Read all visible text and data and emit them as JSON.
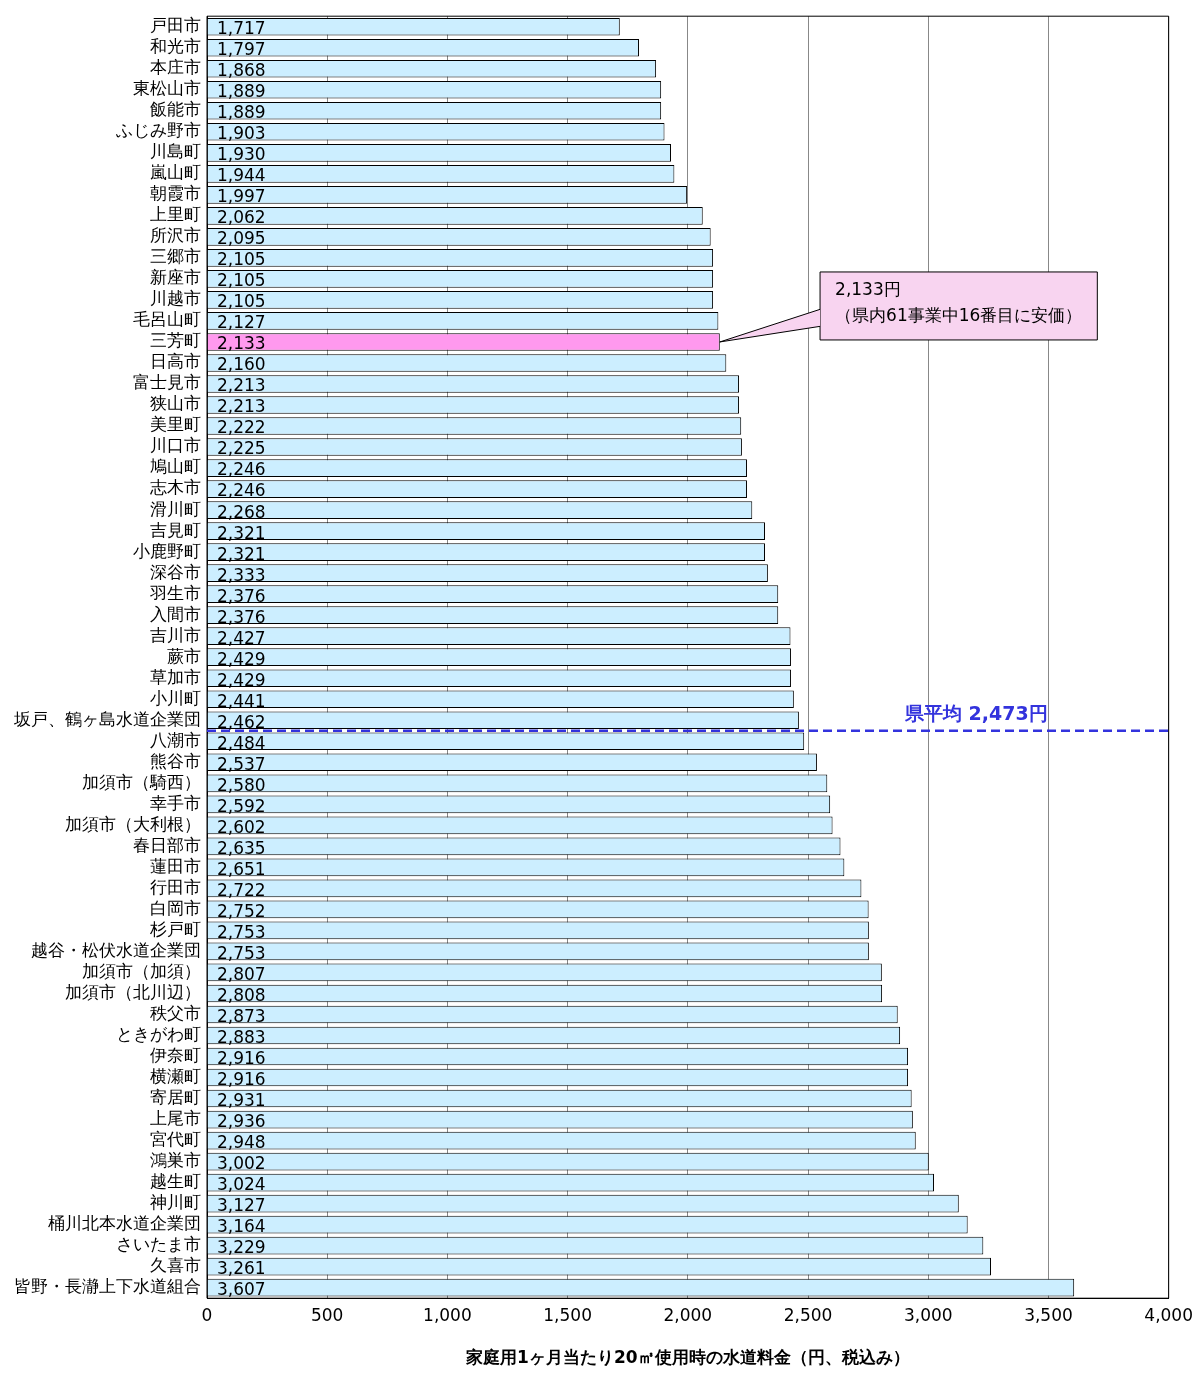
{
  "chart_data": {
    "type": "bar",
    "orientation": "horizontal",
    "xlabel": "家庭用1ヶ月当たり20㎥使用時の水道料金（円、税込み）",
    "categories": [
      "戸田市",
      "和光市",
      "本庄市",
      "東松山市",
      "飯能市",
      "ふじみ野市",
      "川島町",
      "嵐山町",
      "朝霞市",
      "上里町",
      "所沢市",
      "三郷市",
      "新座市",
      "川越市",
      "毛呂山町",
      "三芳町",
      "日高市",
      "富士見市",
      "狭山市",
      "美里町",
      "川口市",
      "鳩山町",
      "志木市",
      "滑川町",
      "吉見町",
      "小鹿野町",
      "深谷市",
      "羽生市",
      "入間市",
      "吉川市",
      "蕨市",
      "草加市",
      "小川町",
      "坂戸、鶴ヶ島水道企業団",
      "八潮市",
      "熊谷市",
      "加須市（騎西）",
      "幸手市",
      "加須市（大利根）",
      "春日部市",
      "蓮田市",
      "行田市",
      "白岡市",
      "杉戸町",
      "越谷・松伏水道企業団",
      "加須市（加須）",
      "加須市（北川辺）",
      "秩父市",
      "ときがわ町",
      "伊奈町",
      "横瀬町",
      "寄居町",
      "上尾市",
      "宮代町",
      "鴻巣市",
      "越生町",
      "神川町",
      "桶川北本水道企業団",
      "さいたま市",
      "久喜市",
      "皆野・長瀞上下水道組合"
    ],
    "values": [
      1717,
      1797,
      1868,
      1889,
      1889,
      1903,
      1930,
      1944,
      1997,
      2062,
      2095,
      2105,
      2105,
      2105,
      2127,
      2133,
      2160,
      2213,
      2213,
      2222,
      2225,
      2246,
      2246,
      2268,
      2321,
      2321,
      2333,
      2376,
      2376,
      2427,
      2429,
      2429,
      2441,
      2462,
      2484,
      2537,
      2580,
      2592,
      2602,
      2635,
      2651,
      2722,
      2752,
      2753,
      2753,
      2807,
      2808,
      2873,
      2883,
      2916,
      2916,
      2931,
      2936,
      2948,
      3002,
      3024,
      3127,
      3164,
      3229,
      3261,
      3607
    ],
    "colors": [
      "#cceeff",
      "#cceeff",
      "#cceeff",
      "#cceeff",
      "#cceeff",
      "#cceeff",
      "#cceeff",
      "#cceeff",
      "#cceeff",
      "#cceeff",
      "#cceeff",
      "#cceeff",
      "#cceeff",
      "#cceeff",
      "#cceeff",
      "#ff99ee",
      "#cceeff",
      "#cceeff",
      "#cceeff",
      "#cceeff",
      "#cceeff",
      "#cceeff",
      "#cceeff",
      "#cceeff",
      "#cceeff",
      "#cceeff",
      "#cceeff",
      "#cceeff",
      "#cceeff",
      "#cceeff",
      "#cceeff",
      "#cceeff",
      "#cceeff",
      "#cceeff",
      "#cceeff",
      "#cceeff",
      "#cceeff",
      "#cceeff",
      "#cceeff",
      "#cceeff",
      "#cceeff",
      "#cceeff",
      "#cceeff",
      "#cceeff",
      "#cceeff",
      "#cceeff",
      "#cceeff",
      "#cceeff",
      "#cceeff",
      "#cceeff",
      "#cceeff",
      "#cceeff",
      "#cceeff",
      "#cceeff",
      "#cceeff",
      "#cceeff",
      "#cceeff",
      "#cceeff",
      "#cceeff",
      "#cceeff",
      "#cceeff"
    ],
    "xlim": [
      0,
      4000
    ],
    "xticks": [
      0,
      500,
      {
        "value": 1000,
        "label": "1,000"
      },
      {
        "value": 1500,
        "label": "1,500"
      },
      {
        "value": 2000,
        "label": "2,000"
      },
      {
        "value": 2500,
        "label": "2,500"
      },
      {
        "value": 3000,
        "label": "3,000"
      },
      {
        "value": 3500,
        "label": "3,500"
      },
      {
        "value": 4000,
        "label": "4,000"
      }
    ],
    "value_labels": [
      "1,717",
      "1,797",
      "1,868",
      "1,889",
      "1,889",
      "1,903",
      "1,930",
      "1,944",
      "1,997",
      "2,062",
      "2,095",
      "2,105",
      "2,105",
      "2,105",
      "2,127",
      "2,133",
      "2,160",
      "2,213",
      "2,213",
      "2,222",
      "2,225",
      "2,246",
      "2,246",
      "2,268",
      "2,321",
      "2,321",
      "2,333",
      "2,376",
      "2,376",
      "2,427",
      "2,429",
      "2,429",
      "2,441",
      "2,462",
      "2,484",
      "2,537",
      "2,580",
      "2,592",
      "2,602",
      "2,635",
      "2,651",
      "2,722",
      "2,752",
      "2,753",
      "2,753",
      "2,807",
      "2,808",
      "2,873",
      "2,883",
      "2,916",
      "2,916",
      "2,931",
      "2,936",
      "2,948",
      "3,002",
      "3,024",
      "3,127",
      "3,164",
      "3,229",
      "3,261",
      "3,607"
    ],
    "grid": "x",
    "legend": false,
    "ref_lines": [
      {
        "axis": "y",
        "value": "八潮市",
        "label": "県平均 2,473円",
        "color": "#3333dd",
        "line_style": "dashed"
      }
    ],
    "annotations": [
      {
        "text": "2,133円",
        "x": 2133,
        "y": "三芳町"
      },
      {
        "text": "（県内61事業中16番目に安価）",
        "x": 2133,
        "y": "三芳町"
      }
    ]
  }
}
